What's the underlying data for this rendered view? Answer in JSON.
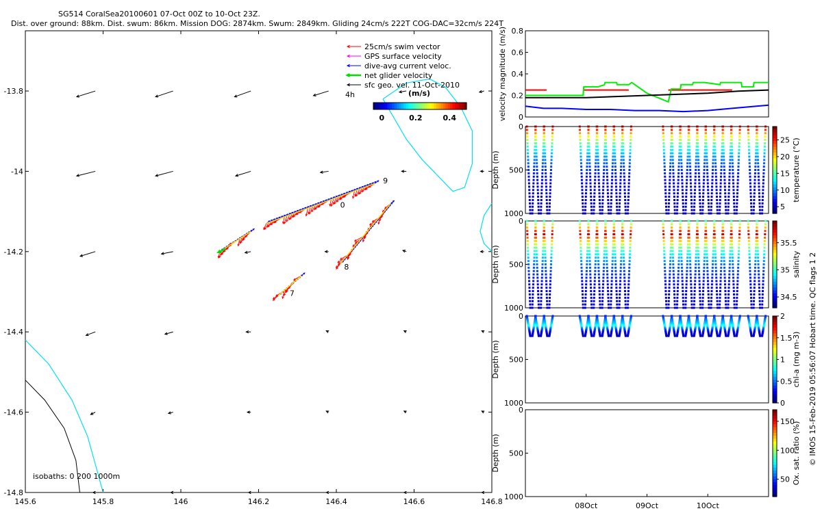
{
  "header": {
    "line1": "SG514 CoralSea20100601 07-Oct 00Z to 10-Oct 23Z.",
    "line2": "Dist. over ground: 88km. Dist. swum: 86km. Mission DOG: 2874km. Swum: 2849km. Gliding 24cm/s 222T COG-DAC=32cm/s 224T"
  },
  "footer": "© IMOS 15-Feb-2019 05:56:07 Hobart time. QC flags 1  2",
  "chart_data": [
    {
      "type": "scatter",
      "panel": "map",
      "xlim": [
        145.6,
        146.8
      ],
      "ylim": [
        -14.8,
        -13.65
      ],
      "xticks": [
        145.6,
        145.8,
        146,
        146.2,
        146.4,
        146.6,
        146.8
      ],
      "xtick_labels": [
        "145.6",
        "145.8",
        "146",
        "146.2",
        "146.4",
        "146.6",
        "146.8"
      ],
      "yticks": [
        -13.8,
        -14,
        -14.2,
        -14.4,
        -14.6,
        -14.8
      ],
      "ytick_labels": [
        "-13.8",
        "-14",
        "-14.2",
        "-14.4",
        "-14.6",
        "-14.8"
      ],
      "legend": {
        "placement": "top-right",
        "entries": [
          {
            "label": "25cm/s swim vector",
            "color": "#ff0000"
          },
          {
            "label": "GPS surface velocity",
            "color": "#ff00ff"
          },
          {
            "label": "dive-avg current veloc.",
            "color": "#0000ff"
          },
          {
            "label": "net glider velocity",
            "color": "#00dd00"
          },
          {
            "label": "sfc geo. vel. 11-Oct-2010",
            "color": "#000000"
          }
        ],
        "vector_scale_label": "4h"
      },
      "colorbar": {
        "label": "(m/s)",
        "ticks": [
          0,
          0.2,
          0.4
        ],
        "tick_labels": [
          "0",
          "0.2",
          "0.4"
        ],
        "range": [
          -0.05,
          0.5
        ]
      },
      "annotation": "isobaths: 0   200   1000m",
      "track_labels": [
        {
          "text": "9",
          "x": 146.52,
          "y": -14.03
        },
        {
          "text": "0",
          "x": 146.41,
          "y": -14.09
        },
        {
          "text": "8",
          "x": 146.42,
          "y": -14.245
        },
        {
          "text": "7",
          "x": 146.28,
          "y": -14.31
        }
      ],
      "track_segments": [
        {
          "from": [
            146.1,
            -14.2
          ],
          "to": [
            146.18,
            -14.15
          ]
        },
        {
          "from": [
            146.22,
            -14.13
          ],
          "to": [
            146.5,
            -14.03
          ]
        },
        {
          "from": [
            146.41,
            -14.23
          ],
          "to": [
            146.54,
            -14.08
          ]
        },
        {
          "from": [
            146.25,
            -14.31
          ],
          "to": [
            146.31,
            -14.26
          ]
        }
      ],
      "geo_vectors": {
        "grid_x": [
          145.78,
          145.98,
          146.18,
          146.38,
          146.58,
          146.78
        ],
        "grid_y": [
          -13.8,
          -14.0,
          -14.2,
          -14.4,
          -14.6,
          -14.8
        ],
        "u": [
          [
            -0.16,
            -0.15,
            -0.14,
            -0.13,
            -0.06,
            -0.04
          ],
          [
            -0.16,
            -0.15,
            -0.13,
            -0.07,
            -0.04,
            -0.03
          ],
          [
            -0.13,
            -0.1,
            -0.05,
            -0.03,
            -0.03,
            -0.03
          ],
          [
            -0.08,
            -0.07,
            -0.04,
            -0.02,
            -0.02,
            -0.02
          ],
          [
            -0.04,
            -0.04,
            -0.03,
            -0.02,
            -0.02,
            -0.02
          ],
          [
            -0.02,
            -0.02,
            -0.02,
            -0.02,
            -0.02,
            -0.02
          ]
        ],
        "v": [
          [
            -0.05,
            -0.05,
            -0.05,
            -0.04,
            -0.01,
            -0.01
          ],
          [
            -0.04,
            -0.04,
            -0.04,
            -0.01,
            0.0,
            0.0
          ],
          [
            -0.04,
            -0.02,
            -0.01,
            0.0,
            0.01,
            0.0
          ],
          [
            -0.03,
            -0.02,
            0.0,
            0.01,
            0.01,
            0.01
          ],
          [
            -0.02,
            -0.01,
            0.0,
            0.01,
            0.01,
            0.01
          ],
          [
            0.0,
            0.0,
            0.0,
            0.0,
            0.0,
            0.0
          ]
        ]
      },
      "isobath_200": [
        [
          145.6,
          -14.42
        ],
        [
          145.66,
          -14.48
        ],
        [
          145.72,
          -14.57
        ],
        [
          145.76,
          -14.66
        ],
        [
          145.78,
          -14.73
        ],
        [
          145.8,
          -14.8
        ]
      ],
      "isobath_0": [
        [
          145.6,
          -14.52
        ],
        [
          145.65,
          -14.57
        ],
        [
          145.7,
          -14.64
        ],
        [
          145.73,
          -14.72
        ],
        [
          145.74,
          -14.8
        ]
      ],
      "eddy_contour": [
        [
          146.52,
          -13.82
        ],
        [
          146.55,
          -13.87
        ],
        [
          146.58,
          -13.92
        ],
        [
          146.62,
          -13.97
        ],
        [
          146.66,
          -14.01
        ],
        [
          146.7,
          -14.05
        ],
        [
          146.73,
          -14.04
        ],
        [
          146.75,
          -13.98
        ],
        [
          146.75,
          -13.9
        ],
        [
          146.72,
          -13.84
        ],
        [
          146.68,
          -13.79
        ],
        [
          146.64,
          -13.77
        ],
        [
          146.58,
          -13.78
        ],
        [
          146.52,
          -13.82
        ]
      ],
      "eddy_contour_2": [
        [
          146.8,
          -14.08
        ],
        [
          146.78,
          -14.11
        ],
        [
          146.77,
          -14.15
        ],
        [
          146.78,
          -14.18
        ],
        [
          146.8,
          -14.2
        ]
      ]
    },
    {
      "type": "line",
      "panel": "velocity",
      "ylabel": "velocity magnitude (m/s)",
      "ylim": [
        0,
        0.8
      ],
      "yticks": [
        0,
        0.2,
        0.4,
        0.6,
        0.8
      ],
      "ytick_labels": [
        "0",
        "0.2",
        "0.4",
        "0.6",
        "0.8"
      ],
      "xlim": [
        7.0,
        11.0
      ],
      "series": [
        {
          "color": "#ff0000",
          "x": [
            7.0,
            7.35,
            7.36,
            7.95,
            7.96,
            8.7
          ],
          "y": [
            0.25,
            0.25,
            null,
            0.25,
            0.25,
            0.25
          ]
        },
        {
          "color": "#ff0000",
          "x": [
            9.35,
            10.4
          ],
          "y": [
            0.25,
            0.25
          ]
        },
        {
          "color": "#00ee00",
          "x": [
            7.0,
            7.35,
            7.95,
            7.96,
            8.2,
            8.3,
            8.31,
            8.5,
            8.51,
            8.7,
            8.75,
            9.0,
            9.35,
            9.4,
            9.55,
            9.56,
            9.75,
            9.76,
            9.95,
            10.2,
            10.21,
            10.55,
            10.56,
            10.75,
            10.76,
            11.0
          ],
          "y": [
            0.2,
            0.2,
            0.2,
            0.28,
            0.28,
            0.3,
            0.32,
            0.32,
            0.3,
            0.3,
            0.32,
            0.22,
            0.14,
            0.26,
            0.26,
            0.3,
            0.3,
            0.32,
            0.32,
            0.3,
            0.32,
            0.32,
            0.28,
            0.28,
            0.32,
            0.32
          ]
        },
        {
          "color": "#000000",
          "x": [
            7.0,
            8.0,
            9.0,
            9.5,
            10.0,
            10.5,
            11.0
          ],
          "y": [
            0.18,
            0.18,
            0.2,
            0.21,
            0.22,
            0.24,
            0.25
          ]
        },
        {
          "color": "#0000ff",
          "x": [
            7.0,
            7.3,
            7.6,
            8.0,
            8.4,
            8.8,
            9.2,
            9.6,
            10.0,
            10.4,
            10.8,
            11.0
          ],
          "y": [
            0.1,
            0.08,
            0.08,
            0.07,
            0.07,
            0.06,
            0.06,
            0.05,
            0.06,
            0.08,
            0.1,
            0.11
          ]
        }
      ]
    },
    {
      "type": "scatter",
      "panel": "temperature",
      "ylabel": "Depth (m)",
      "colorbar_label": "temperature (°C)",
      "ylim": [
        1000,
        0
      ],
      "yticks": [
        0,
        500,
        1000
      ],
      "ytick_labels": [
        "0",
        "500",
        "1000"
      ],
      "colorbar_range": [
        3,
        29
      ],
      "colorbar_ticks": [
        5,
        10,
        15,
        20,
        25
      ],
      "colorbar_tick_labels": [
        "5",
        "10",
        "15",
        "20",
        "25"
      ],
      "profiles": {
        "max_depth": 1000,
        "surface_value": 28,
        "deep_value": 4
      },
      "dive_times": [
        7.08,
        7.22,
        7.36,
        7.95,
        8.09,
        8.23,
        8.37,
        8.51,
        8.65,
        9.32,
        9.46,
        9.6,
        9.74,
        9.88,
        10.02,
        10.16,
        10.3,
        10.44,
        10.72,
        10.86
      ]
    },
    {
      "type": "scatter",
      "panel": "salinity",
      "ylabel": "Depth (m)",
      "colorbar_label": "salinity",
      "ylim": [
        1000,
        0
      ],
      "yticks": [
        0,
        500,
        1000
      ],
      "ytick_labels": [
        "0",
        "500",
        "1000"
      ],
      "colorbar_range": [
        34.3,
        35.9
      ],
      "colorbar_ticks": [
        34.5,
        35,
        35.5
      ],
      "colorbar_tick_labels": [
        "34.5",
        "35",
        "35.5"
      ],
      "profiles": {
        "max_depth": 1000,
        "surface_value": 35.0,
        "max_value": 35.8,
        "max_depth_value": 150,
        "deep_value": 34.4
      }
    },
    {
      "type": "scatter",
      "panel": "chlorophyll",
      "ylabel": "Depth (m)",
      "colorbar_label": "chl-a (mg m-3)",
      "ylim": [
        1000,
        0
      ],
      "yticks": [
        0,
        500,
        1000
      ],
      "ytick_labels": [
        "0",
        "500",
        "1000"
      ],
      "colorbar_range": [
        0,
        2
      ],
      "colorbar_ticks": [
        0,
        0.5,
        1,
        1.5,
        2
      ],
      "colorbar_tick_labels": [
        "0",
        "0.5",
        "1",
        "1.5",
        "2"
      ],
      "profiles": {
        "max_depth": 230,
        "surface_value": 0.3,
        "max_value": 0.8,
        "max_depth_value": 120,
        "deep_value": 0.05
      }
    },
    {
      "type": "scatter",
      "panel": "oxygen",
      "ylabel": "Depth (m)",
      "colorbar_label": "Ox. sat. ratio (%)",
      "ylim": [
        1000,
        0
      ],
      "yticks": [
        0,
        500,
        1000
      ],
      "ytick_labels": [
        "0",
        "500",
        "1000"
      ],
      "colorbar_range": [
        20,
        170
      ],
      "colorbar_ticks": [
        50,
        100,
        150
      ],
      "colorbar_tick_labels": [
        "50",
        "100",
        "150"
      ],
      "xticks": [
        8.0,
        9.0,
        10.0
      ],
      "xtick_labels": [
        "08Oct",
        "09Oct",
        "10Oct"
      ]
    }
  ],
  "colors": {
    "axis": "#000000",
    "swim": "#ff0000",
    "gps": "#ff00ff",
    "dac": "#0000ff",
    "net": "#00dd00",
    "geo": "#000000",
    "eddy": "#00e0f0",
    "isobath_200": "#00e0f0",
    "isobath_0": "#000000"
  }
}
